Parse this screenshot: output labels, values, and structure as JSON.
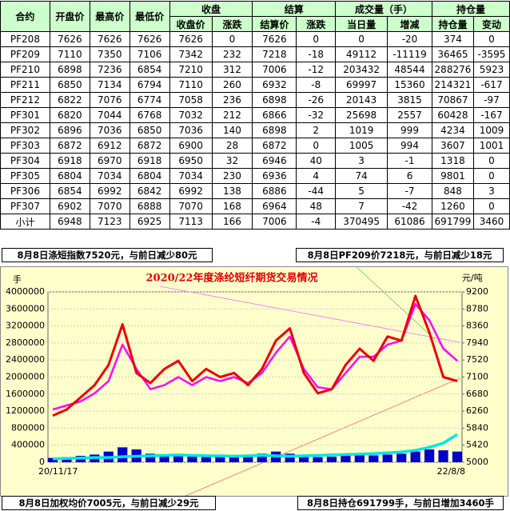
{
  "table": {
    "header_top": [
      "合约",
      "开盘价",
      "最高价",
      "最低价",
      "收盘",
      "结算",
      "成交量（手）",
      "持仓量"
    ],
    "header_sub": [
      "收盘价",
      "涨跌",
      "结算价",
      "涨跌",
      "当日量",
      "增减",
      "持仓量",
      "变动"
    ],
    "rows": [
      [
        "PF208",
        7626,
        7626,
        7626,
        7626,
        0,
        7626,
        0,
        0,
        -20,
        374,
        0
      ],
      [
        "PF209",
        7110,
        7350,
        7106,
        7342,
        232,
        7218,
        -18,
        49112,
        -11119,
        36465,
        -3595
      ],
      [
        "PF210",
        6898,
        7236,
        6854,
        7210,
        312,
        7006,
        -12,
        203432,
        48544,
        288276,
        5923
      ],
      [
        "PF211",
        6850,
        7134,
        6794,
        7110,
        260,
        6932,
        -8,
        69997,
        15360,
        214321,
        -617
      ],
      [
        "PF212",
        6822,
        7076,
        6774,
        7058,
        236,
        6898,
        -26,
        20143,
        3815,
        70867,
        -97
      ],
      [
        "PF301",
        6820,
        7044,
        6768,
        7032,
        212,
        6866,
        -32,
        25698,
        2557,
        60428,
        -167
      ],
      [
        "PF302",
        6896,
        7036,
        6850,
        7036,
        140,
        6898,
        2,
        1019,
        999,
        4234,
        1009
      ],
      [
        "PF303",
        6872,
        6912,
        6872,
        6900,
        28,
        6872,
        0,
        1005,
        994,
        3607,
        1001
      ],
      [
        "PF304",
        6918,
        6970,
        6918,
        6950,
        32,
        6946,
        40,
        3,
        -1,
        1318,
        0
      ],
      [
        "PF305",
        6804,
        7034,
        6804,
        7034,
        230,
        6936,
        4,
        74,
        6,
        9801,
        0
      ],
      [
        "PF306",
        6854,
        6992,
        6842,
        6992,
        138,
        6886,
        -44,
        5,
        -7,
        848,
        3
      ],
      [
        "PF307",
        6902,
        7070,
        6888,
        7070,
        168,
        6964,
        48,
        7,
        -42,
        1260,
        0
      ],
      [
        "小计",
        6948,
        7123,
        6925,
        7113,
        166,
        7006,
        -4,
        370495,
        61086,
        691799,
        3460
      ]
    ]
  },
  "notes": {
    "top_left": "8月8日涤短指数7520元，与前日减少80元",
    "top_right": "8月8日PF209价7218元，与前日减少18元",
    "bottom_left": "8月8日加权均价7005元，与前日减少29元",
    "bottom_right": "8月8日持仓691799手，与前日增加3460手"
  },
  "chart_data": {
    "type": "line",
    "title": "2020/22年度涤纶短纤期货交易情况",
    "y_unit": "手",
    "y2_unit": "元/吨",
    "x_labels": [
      "20/11/17",
      "22/8/8"
    ],
    "ylim": [
      0,
      4000000
    ],
    "yticks": [
      0,
      400000,
      800000,
      1200000,
      1600000,
      2000000,
      2400000,
      2800000,
      3200000,
      3600000,
      4000000
    ],
    "y2lim": [
      5000,
      9200
    ],
    "y2ticks": [
      5000,
      5420,
      5840,
      6260,
      6680,
      7100,
      7520,
      7940,
      8360,
      8780,
      9200
    ],
    "grid": true,
    "bars": {
      "color": "#0000cc",
      "values": [
        100000,
        120000,
        150000,
        180000,
        250000,
        350000,
        300000,
        200000,
        180000,
        170000,
        150000,
        160000,
        150000,
        140000,
        150000,
        200000,
        250000,
        200000,
        150000,
        120000,
        130000,
        150000,
        170000,
        160000,
        180000,
        200000,
        250000,
        300000,
        280000,
        250000
      ]
    },
    "series": [
      {
        "color": "#00e5e5",
        "values": [
          80000,
          90000,
          100000,
          110000,
          110000,
          130000,
          140000,
          150000,
          160000,
          170000,
          160000,
          150000,
          150000,
          140000,
          150000,
          160000,
          150000,
          140000,
          150000,
          160000,
          170000,
          180000,
          190000,
          200000,
          220000,
          240000,
          280000,
          350000,
          450000,
          650000
        ]
      },
      {
        "color": "#ff00ff",
        "axis": "y2",
        "values": [
          6300,
          6400,
          6500,
          6700,
          7000,
          7900,
          7300,
          6800,
          6900,
          7100,
          6900,
          7100,
          7000,
          7100,
          6950,
          7200,
          7700,
          8100,
          7300,
          6850,
          6800,
          7200,
          7600,
          7600,
          7900,
          8000,
          8900,
          8500,
          7800,
          7500
        ]
      },
      {
        "color": "#ee0000",
        "axis": "y2",
        "values": [
          6150,
          6300,
          6600,
          6900,
          7400,
          8400,
          7200,
          6950,
          7300,
          7500,
          7000,
          7300,
          7100,
          7200,
          6900,
          7300,
          8000,
          8300,
          7200,
          6700,
          6800,
          7400,
          7800,
          7500,
          8100,
          8000,
          9100,
          8200,
          7100,
          7000
        ]
      }
    ]
  }
}
